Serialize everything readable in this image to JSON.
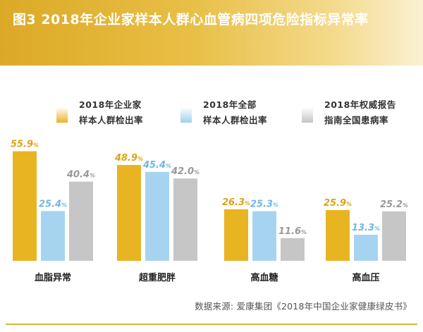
{
  "header": {
    "title": "图3 2018年企业家样本人群心血管病四项危险指标异常率"
  },
  "legend": [
    {
      "line1": "2018年企业家",
      "line2": "样本人群检出率",
      "color": "#e8b422"
    },
    {
      "line1": "2018年全部",
      "line2": "样本人群检出率",
      "color": "#9fd0ee"
    },
    {
      "line1": "2018年权威报告",
      "line2": "指南全国患病率",
      "color": "#c4c4c4"
    }
  ],
  "chart_data": {
    "type": "bar",
    "categories": [
      "血脂异常",
      "超重肥胖",
      "高血糖",
      "高血压"
    ],
    "series": [
      {
        "name": "2018年企业家样本人群检出率",
        "values": [
          55.9,
          48.9,
          26.3,
          25.9
        ],
        "color": "#e8b422",
        "label_color": "#d9a516"
      },
      {
        "name": "2018年全部样本人群检出率",
        "values": [
          25.4,
          45.4,
          25.3,
          13.3
        ],
        "color": "#a6d4f0",
        "label_color": "#6fb7e3"
      },
      {
        "name": "2018年权威报告指南全国患病率",
        "values": [
          40.4,
          42.0,
          11.6,
          25.2
        ],
        "color": "#c6c6c6",
        "label_color": "#999999"
      }
    ],
    "value_suffix": "%",
    "ylim": [
      0,
      60
    ],
    "grid": false
  },
  "source": "数据来源: 爱康集团《2018年中国企业家健康绿皮书》"
}
